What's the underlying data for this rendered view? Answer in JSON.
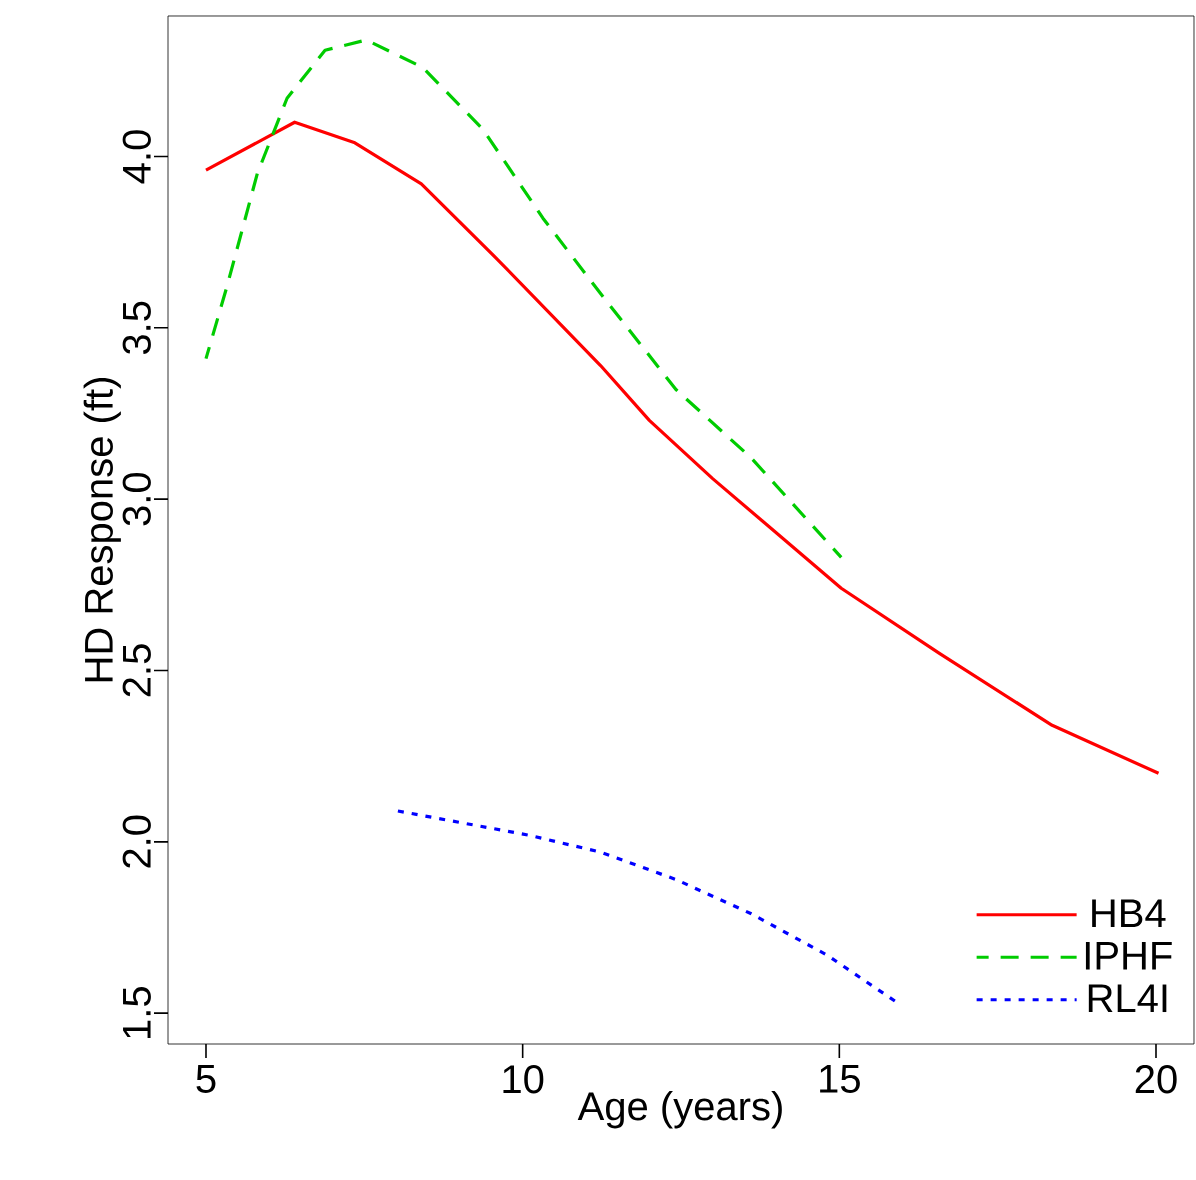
{
  "chart_data": {
    "type": "line",
    "xlabel": "Age (years)",
    "ylabel": "HD Response (ft)",
    "xlim": [
      4.4,
      20.6
    ],
    "ylim": [
      1.41,
      4.41
    ],
    "xticks": [
      5,
      10,
      15,
      20
    ],
    "yticks": [
      {
        "value": 1.5,
        "label": "1.5"
      },
      {
        "value": 2,
        "label": "2.0"
      },
      {
        "value": 2.5,
        "label": "2.5"
      },
      {
        "value": 3,
        "label": "3.0"
      },
      {
        "value": 3.5,
        "label": "3.5"
      },
      {
        "value": 4,
        "label": "4.0"
      }
    ],
    "legend": "bottom right",
    "grid": false,
    "series": [
      {
        "name": "HB4",
        "color": "#ff0000",
        "line_style": "solid",
        "x": [
          5,
          6.4,
          7.35,
          8.4,
          9.6,
          11.23,
          12,
          13,
          15.03,
          16.58,
          18.36,
          20.04
        ],
        "values": [
          3.96,
          4.1,
          4.04,
          3.92,
          3.7,
          3.39,
          3.23,
          3.06,
          2.74,
          2.55,
          2.34,
          2.2
        ]
      },
      {
        "name": "IPHF",
        "color": "#00cc00",
        "line_style": "dashed",
        "x": [
          5,
          5.33,
          5.81,
          6.28,
          6.88,
          7.53,
          8.42,
          9.37,
          10.32,
          11.23,
          12.42,
          13.61,
          15.03
        ],
        "values": [
          3.41,
          3.62,
          3.95,
          4.17,
          4.31,
          4.34,
          4.26,
          4.08,
          3.82,
          3.6,
          3.32,
          3.12,
          2.83
        ]
      },
      {
        "name": "RL4I",
        "color": "#0000ff",
        "line_style": "dotted",
        "x": [
          8.03,
          10.08,
          11.23,
          12.42,
          13.61,
          14.8,
          15.92
        ],
        "values": [
          2.09,
          2.02,
          1.97,
          1.89,
          1.79,
          1.67,
          1.53
        ]
      }
    ]
  }
}
